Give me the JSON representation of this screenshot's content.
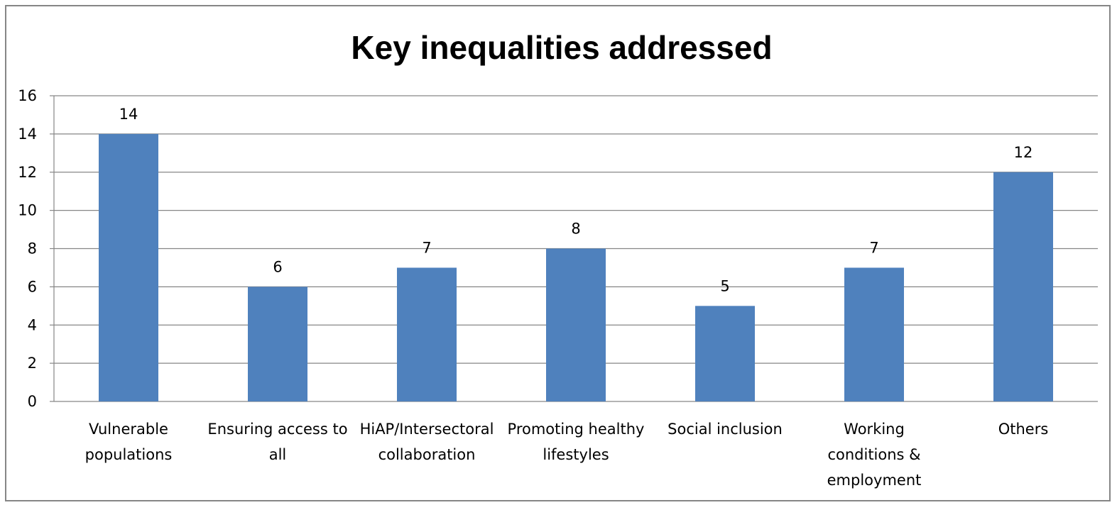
{
  "chart_data": {
    "type": "bar",
    "title": "Key inequalities addressed",
    "categories": [
      [
        "Vulnerable",
        "populations"
      ],
      [
        "Ensuring access to",
        "all"
      ],
      [
        "HiAP/Intersectoral",
        "collaboration"
      ],
      [
        "Promoting healthy",
        "lifestyles"
      ],
      [
        "Social inclusion"
      ],
      [
        "Working",
        "conditions &",
        "employment"
      ],
      [
        "Others"
      ]
    ],
    "values": [
      14,
      6,
      7,
      8,
      5,
      7,
      12
    ],
    "data_labels": [
      "14",
      "6",
      "7",
      "8",
      "5",
      "7",
      "12"
    ],
    "y_ticks": [
      "0",
      "2",
      "4",
      "6",
      "8",
      "10",
      "12",
      "14",
      "16"
    ],
    "ylim": [
      0,
      16
    ],
    "grid": true,
    "legend": "none",
    "bar_color": "#4F81BD",
    "grid_color": "#868686"
  }
}
